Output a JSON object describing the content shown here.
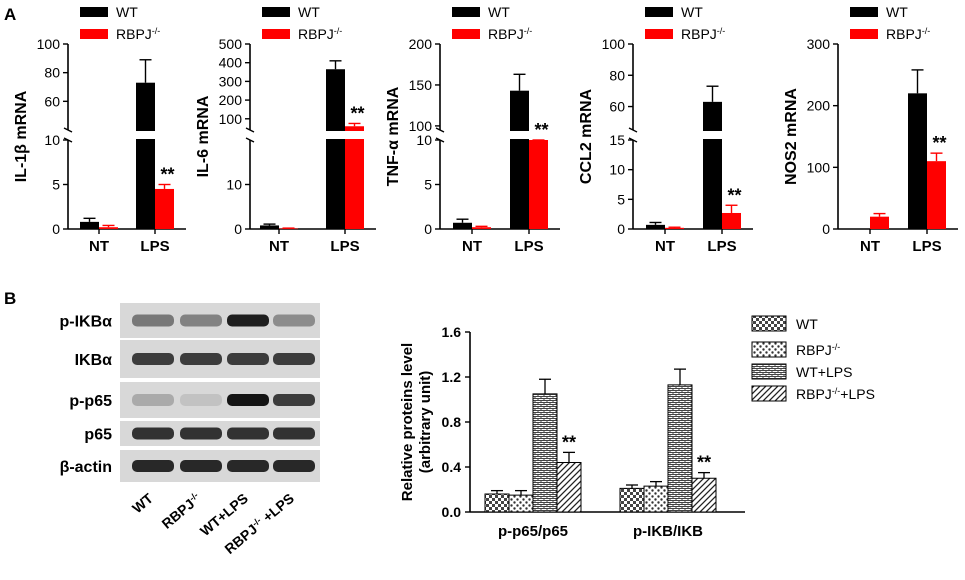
{
  "panel_labels": [
    "A",
    "B"
  ],
  "colors": {
    "wt": "#000000",
    "ko": "#ff0000",
    "axis": "#000000"
  },
  "legend": {
    "wt": "WT",
    "ko": "RBPJ",
    "ko_sup": "-/-"
  },
  "significance": "**",
  "chart_data": [
    {
      "type": "bar",
      "ylabel": "IL-1β mRNA",
      "categories": [
        "NT",
        "LPS"
      ],
      "series": [
        {
          "name": "WT",
          "values": [
            0.8,
            73
          ],
          "errors": [
            0.4,
            16
          ]
        },
        {
          "name": "RBPJ-/-",
          "values": [
            0.2,
            4.5
          ],
          "errors": [
            0.2,
            0.5
          ]
        }
      ],
      "segments": [
        {
          "range": [
            0,
            10
          ],
          "ticks": [
            0,
            5,
            10
          ]
        },
        {
          "range": [
            40,
            100
          ],
          "ticks": [
            60,
            80,
            100
          ]
        }
      ],
      "annotation": {
        "category": "LPS",
        "series": "RBPJ-/-",
        "text": "**"
      }
    },
    {
      "type": "bar",
      "ylabel": "IL-6 mRNA",
      "categories": [
        "NT",
        "LPS"
      ],
      "series": [
        {
          "name": "WT",
          "values": [
            0.8,
            365
          ],
          "errors": [
            0.3,
            45
          ]
        },
        {
          "name": "RBPJ-/-",
          "values": [
            0.1,
            60
          ],
          "errors": [
            0.1,
            15
          ]
        }
      ],
      "segments": [
        {
          "range": [
            0,
            20
          ],
          "ticks": [
            0,
            10
          ]
        },
        {
          "range": [
            40,
            500
          ],
          "ticks": [
            100,
            200,
            300,
            400,
            500
          ]
        }
      ],
      "annotation": {
        "category": "LPS",
        "series": "RBPJ-/-",
        "text": "**"
      }
    },
    {
      "type": "bar",
      "ylabel": "TNF-α mRNA",
      "categories": [
        "NT",
        "LPS"
      ],
      "series": [
        {
          "name": "WT",
          "values": [
            0.7,
            143
          ],
          "errors": [
            0.4,
            20
          ]
        },
        {
          "name": "RBPJ-/-",
          "values": [
            0.2,
            88
          ],
          "errors": [
            0.1,
            5
          ]
        }
      ],
      "segments": [
        {
          "range": [
            0,
            10
          ],
          "ticks": [
            0,
            5,
            10
          ]
        },
        {
          "range": [
            95,
            200
          ],
          "ticks": [
            100,
            150,
            200
          ]
        }
      ],
      "annotation": {
        "category": "LPS",
        "series": "RBPJ-/-",
        "text": "**"
      }
    },
    {
      "type": "bar",
      "ylabel": "CCL2 mRNA",
      "categories": [
        "NT",
        "LPS"
      ],
      "series": [
        {
          "name": "WT",
          "values": [
            0.7,
            63
          ],
          "errors": [
            0.4,
            10
          ]
        },
        {
          "name": "RBPJ-/-",
          "values": [
            0.2,
            2.7
          ],
          "errors": [
            0.1,
            1.3
          ]
        }
      ],
      "segments": [
        {
          "range": [
            0,
            15
          ],
          "ticks": [
            0,
            5,
            10,
            15
          ]
        },
        {
          "range": [
            45,
            100
          ],
          "ticks": [
            60,
            80,
            100
          ]
        }
      ],
      "annotation": {
        "category": "LPS",
        "series": "RBPJ-/-",
        "text": "**"
      }
    },
    {
      "type": "bar",
      "ylabel": "NOS2 mRNA",
      "categories": [
        "NT",
        "LPS"
      ],
      "series": [
        {
          "name": "WT",
          "values": [
            0,
            220
          ],
          "errors": [
            0,
            38
          ]
        },
        {
          "name": "RBPJ-/-",
          "values": [
            20,
            110
          ],
          "errors": [
            5,
            13
          ]
        }
      ],
      "ylim": [
        0,
        300
      ],
      "ticks": [
        0,
        100,
        200,
        300
      ],
      "annotation": {
        "category": "LPS",
        "series": "RBPJ-/-",
        "text": "**"
      }
    },
    {
      "type": "bar",
      "ylabel": "Relative proteins level (arbitrary unit)",
      "categories": [
        "p-p65/p65",
        "p-IKB/IKB"
      ],
      "series": [
        {
          "name": "WT",
          "values": [
            0.16,
            0.21
          ],
          "errors": [
            0.03,
            0.03
          ]
        },
        {
          "name": "RBPJ-/-",
          "values": [
            0.15,
            0.23
          ],
          "errors": [
            0.04,
            0.04
          ]
        },
        {
          "name": "WT+LPS",
          "values": [
            1.05,
            1.13
          ],
          "errors": [
            0.13,
            0.14
          ]
        },
        {
          "name": "RBPJ-/-+LPS",
          "values": [
            0.44,
            0.3
          ],
          "errors": [
            0.09,
            0.05
          ]
        }
      ],
      "ylim": [
        0,
        1.6
      ],
      "ticks": [
        "0.0",
        "0.4",
        "0.8",
        "1.2",
        "1.6"
      ],
      "legend_position": "top-right",
      "annotation": {
        "series": "RBPJ-/-+LPS",
        "text": "**"
      }
    }
  ],
  "blot": {
    "rows": [
      "p-IKBα",
      "IKBα",
      "p-p65",
      "p65",
      "β-actin"
    ],
    "lanes": [
      "WT",
      "RBPJ-/-",
      "WT+LPS",
      "RBPJ-/- +LPS"
    ],
    "band_intensity": [
      [
        0.45,
        0.4,
        0.9,
        0.35
      ],
      [
        0.75,
        0.75,
        0.75,
        0.75
      ],
      [
        0.2,
        0.08,
        0.95,
        0.75
      ],
      [
        0.8,
        0.8,
        0.8,
        0.8
      ],
      [
        0.85,
        0.85,
        0.85,
        0.85
      ]
    ]
  }
}
